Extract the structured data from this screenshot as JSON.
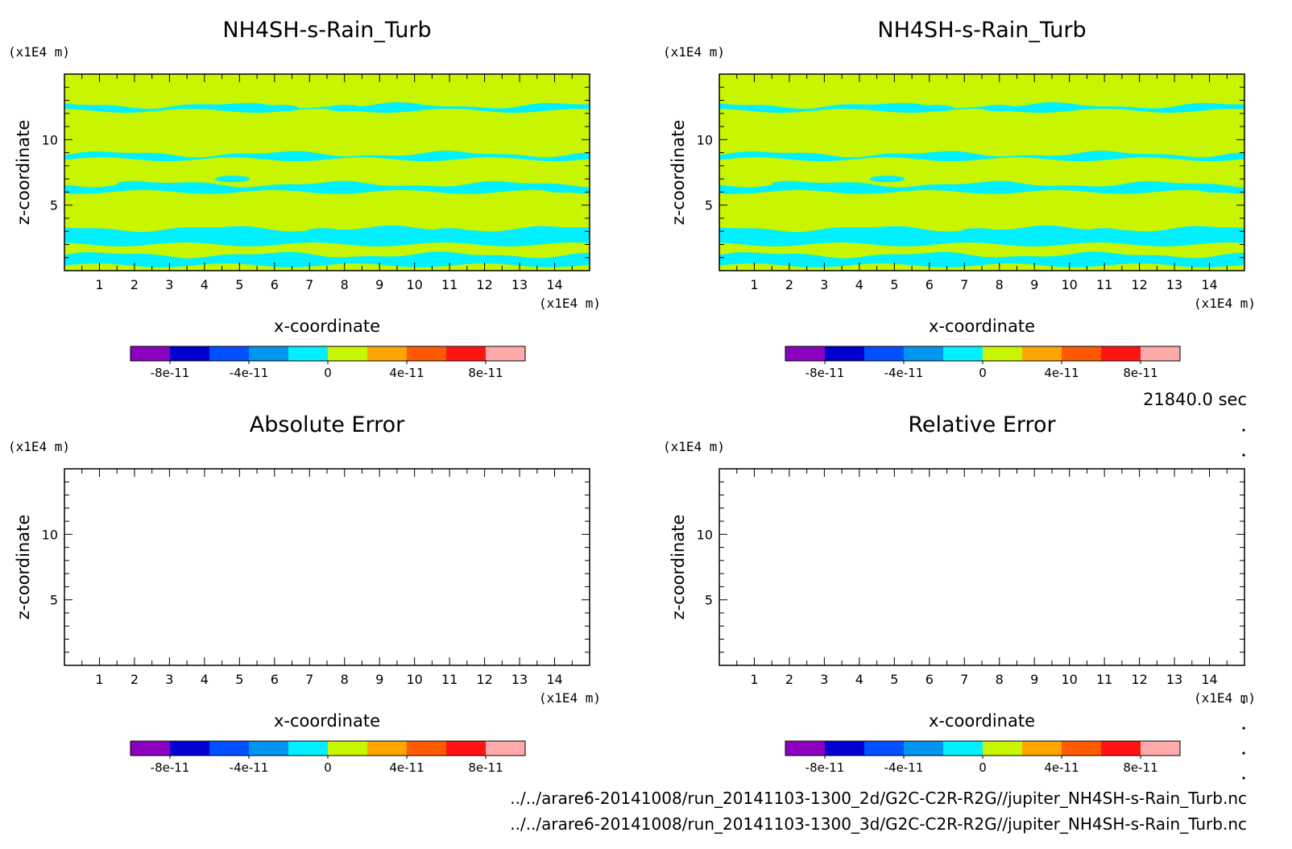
{
  "time_label": "21840.0 sec",
  "files": [
    "../../arare6-20141008/run_20141103-1300_2d/G2C-C2R-R2G//jupiter_NH4SH-s-Rain_Turb.nc",
    "../../arare6-20141008/run_20141103-1300_3d/G2C-C2R-R2G//jupiter_NH4SH-s-Rain_Turb.nc"
  ],
  "colorbar": {
    "colors": [
      "#8c00c0",
      "#0000d0",
      "#0050ff",
      "#0096f0",
      "#00f0ff",
      "#c8f500",
      "#ffa500",
      "#ff5a00",
      "#ff1414",
      "#ffaaaa"
    ],
    "tick_labels": [
      "-8e-11",
      "-4e-11",
      "0",
      "4e-11",
      "8e-11"
    ]
  },
  "chart_data": [
    {
      "type": "heatmap",
      "title": "NH4SH-s-Rain_Turb",
      "xlabel": "x-coordinate",
      "ylabel": "z-coordinate",
      "x_unit": "(x1E4 m)",
      "y_unit": "(x1E4 m)",
      "xlim": [
        0,
        15
      ],
      "ylim": [
        0,
        15
      ],
      "x_ticks": [
        "1",
        "2",
        "3",
        "4",
        "5",
        "6",
        "7",
        "8",
        "9",
        "10",
        "11",
        "12",
        "13",
        "14"
      ],
      "y_ticks": [
        "5",
        "10"
      ],
      "fill": "#c8f500",
      "contour_fill": "#00f0ff",
      "bands_z": [
        0.4,
        1.2,
        2.0,
        3.2,
        6.0,
        6.6,
        8.5,
        8.9,
        12.2,
        12.6
      ],
      "filled": true
    },
    {
      "type": "heatmap",
      "title": "NH4SH-s-Rain_Turb",
      "xlabel": "x-coordinate",
      "ylabel": "z-coordinate",
      "x_unit": "(x1E4 m)",
      "y_unit": "(x1E4 m)",
      "xlim": [
        0,
        15
      ],
      "ylim": [
        0,
        15
      ],
      "x_ticks": [
        "1",
        "2",
        "3",
        "4",
        "5",
        "6",
        "7",
        "8",
        "9",
        "10",
        "11",
        "12",
        "13",
        "14"
      ],
      "y_ticks": [
        "5",
        "10"
      ],
      "fill": "#c8f500",
      "contour_fill": "#00f0ff",
      "bands_z": [
        0.4,
        1.2,
        2.0,
        3.2,
        6.0,
        6.6,
        8.5,
        8.9,
        12.2,
        12.6
      ],
      "filled": true
    },
    {
      "type": "heatmap",
      "title": "Absolute Error",
      "xlabel": "x-coordinate",
      "ylabel": "z-coordinate",
      "x_unit": "(x1E4 m)",
      "y_unit": "(x1E4 m)",
      "xlim": [
        0,
        15
      ],
      "ylim": [
        0,
        15
      ],
      "x_ticks": [
        "1",
        "2",
        "3",
        "4",
        "5",
        "6",
        "7",
        "8",
        "9",
        "10",
        "11",
        "12",
        "13",
        "14"
      ],
      "y_ticks": [
        "5",
        "10"
      ],
      "filled": false
    },
    {
      "type": "heatmap",
      "title": "Relative Error",
      "xlabel": "x-coordinate",
      "ylabel": "z-coordinate",
      "x_unit": "(x1E4 m)",
      "y_unit": "(x1E4 m)",
      "xlim": [
        0,
        15
      ],
      "ylim": [
        0,
        15
      ],
      "x_ticks": [
        "1",
        "2",
        "3",
        "4",
        "5",
        "6",
        "7",
        "8",
        "9",
        "10",
        "11",
        "12",
        "13",
        "14"
      ],
      "y_ticks": [
        "5",
        "10"
      ],
      "filled": false
    }
  ]
}
